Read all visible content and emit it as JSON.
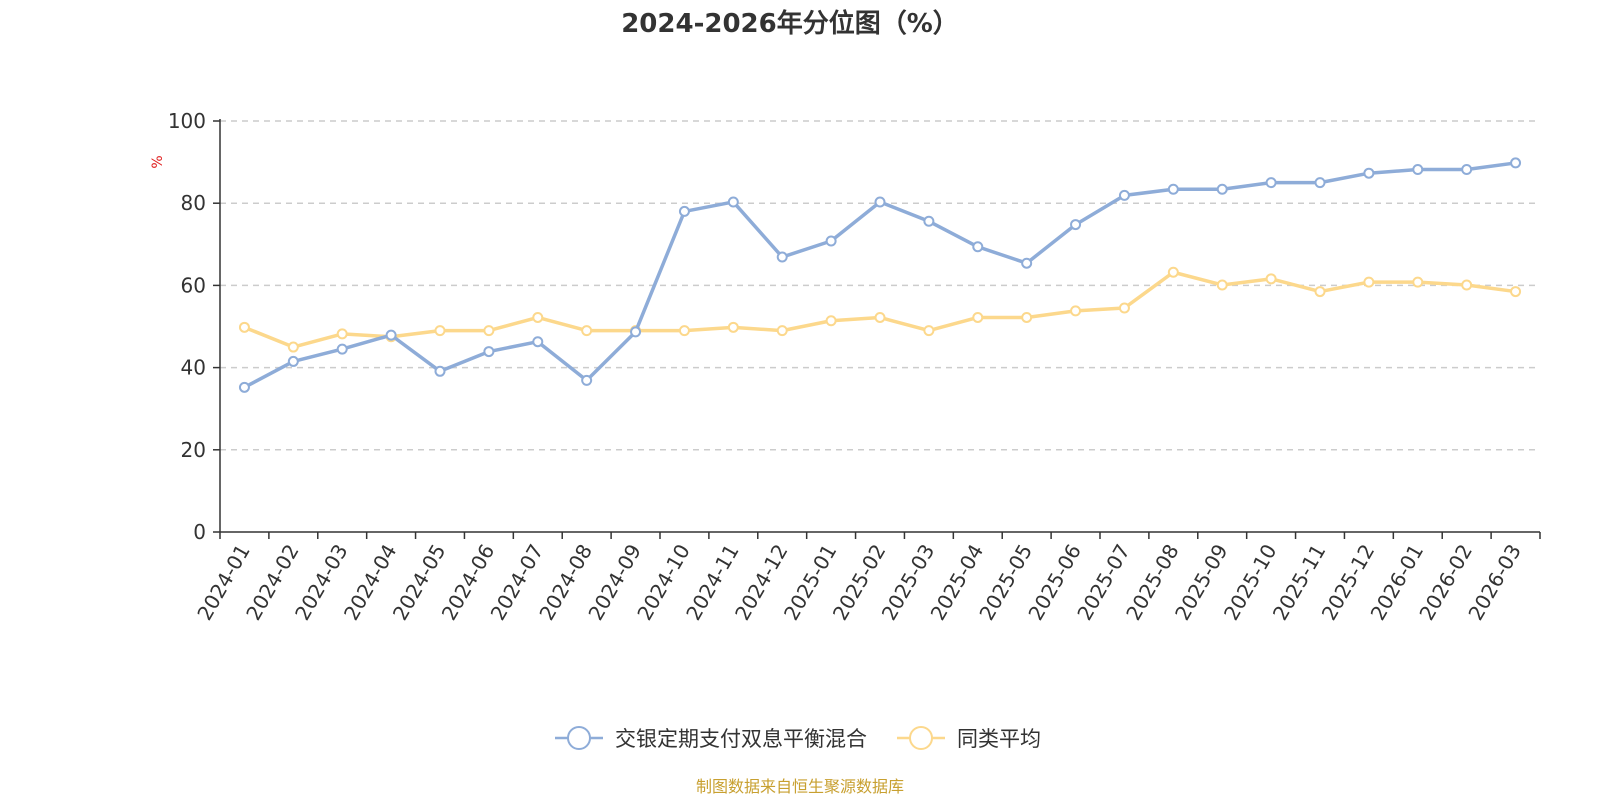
{
  "chart_data": {
    "type": "line",
    "title": "2024-2026年分位图（%）",
    "ylabel": "%",
    "xlabel": "",
    "ylim": [
      0,
      100
    ],
    "yticks": [
      0,
      20,
      40,
      60,
      80,
      100
    ],
    "grid": true,
    "legend_position": "bottom-center",
    "categories": [
      "2024-01",
      "2024-02",
      "2024-03",
      "2024-04",
      "2024-05",
      "2024-06",
      "2024-07",
      "2024-08",
      "2024-09",
      "2024-10",
      "2024-11",
      "2024-12",
      "2025-01",
      "2025-02",
      "2025-03",
      "2025-04",
      "2025-05",
      "2025-06",
      "2025-07",
      "2025-08",
      "2025-09",
      "2025-10",
      "2025-11",
      "2025-12",
      "2026-01",
      "2026-02",
      "2026-03"
    ],
    "series": [
      {
        "name": "交银定期支付双息平衡混合",
        "color": "#8eacd8",
        "values": [
          35.2,
          41.5,
          44.5,
          47.9,
          39.1,
          43.9,
          46.3,
          36.9,
          48.7,
          78.0,
          80.3,
          66.9,
          70.8,
          80.3,
          75.6,
          69.4,
          65.4,
          74.8,
          81.9,
          83.4,
          83.4,
          85.0,
          85.0,
          87.3,
          88.2,
          88.2,
          89.8
        ]
      },
      {
        "name": "同类平均",
        "color": "#fcd88c",
        "values": [
          49.8,
          45.0,
          48.2,
          47.5,
          49.0,
          49.0,
          52.2,
          49.0,
          49.0,
          49.0,
          49.8,
          49.0,
          51.4,
          52.2,
          49.0,
          52.2,
          52.2,
          53.8,
          54.5,
          63.2,
          60.1,
          61.6,
          58.5,
          60.8,
          60.8,
          60.1,
          58.5
        ]
      }
    ]
  },
  "source": "制图数据来自恒生聚源数据库",
  "colors": {
    "title": "#333333",
    "unit": "#e02020",
    "source": "#c8a030",
    "grid": "#cccccc"
  }
}
